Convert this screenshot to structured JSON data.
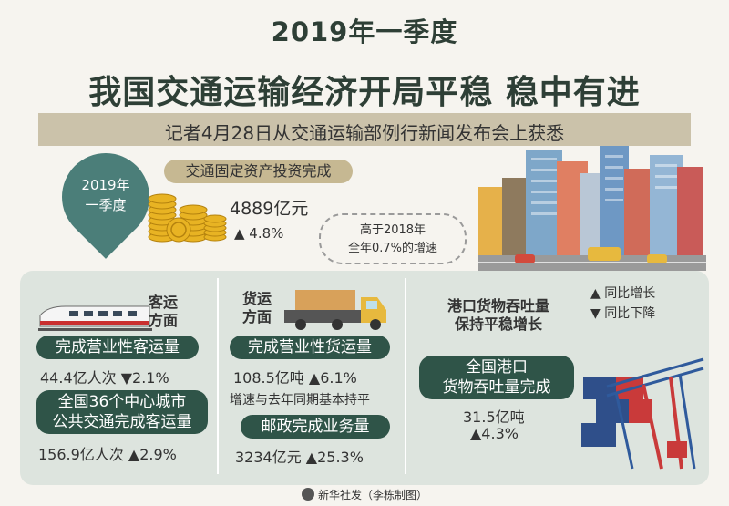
{
  "title": {
    "line1": "2019年一季度",
    "line2": "我国交通运输经济开局平稳 稳中有进"
  },
  "subtitle": "记者4月28日从交通运输部例行新闻发布会上获悉",
  "period_badge": {
    "line1": "2019年",
    "line2": "一季度"
  },
  "investment": {
    "label": "交通固定资产投资完成",
    "amount": "4889亿元",
    "growth": "▲ 4.8%",
    "note_line1": "高于2018年",
    "note_line2": "全年0.7%的增速"
  },
  "passenger": {
    "heading_line1": "客运",
    "heading_line2": "方面",
    "item1_label": "完成营业性客运量",
    "item1_value": "44.4亿人次 ▼2.1%",
    "item2_label_line1": "全国36个中心城市",
    "item2_label_line2": "公共交通完成客运量",
    "item2_value": "156.9亿人次 ▲2.9%"
  },
  "freight": {
    "heading_line1": "货运",
    "heading_line2": "方面",
    "item1_label": "完成营业性货运量",
    "item1_value": "108.5亿吨 ▲6.1%",
    "item1_note": "增速与去年同期基本持平",
    "item2_label": "邮政完成业务量",
    "item2_value": "3234亿元 ▲25.3%"
  },
  "port": {
    "heading_line1": "港口货物吞吐量",
    "heading_line2": "保持平稳增长",
    "label_line1": "全国港口",
    "label_line2": "货物吞吐量完成",
    "value": "31.5亿吨",
    "growth": "▲4.3%"
  },
  "legend": {
    "up": "▲ 同比增长",
    "down": "▼ 同比下降"
  },
  "footer": "新华社发（李栋制图）",
  "colors": {
    "title": "#2e3f36",
    "accent_dark_green": "#2f5448",
    "teal_pin": "#4b7e79",
    "tan": "#c6b892",
    "panel_bg": "#dde4de"
  },
  "icons": [
    "coin-stack-icon",
    "skyline-illustration",
    "high-speed-train-icon",
    "cargo-truck-icon",
    "port-crane-icon",
    "xinhua-logo-icon"
  ]
}
